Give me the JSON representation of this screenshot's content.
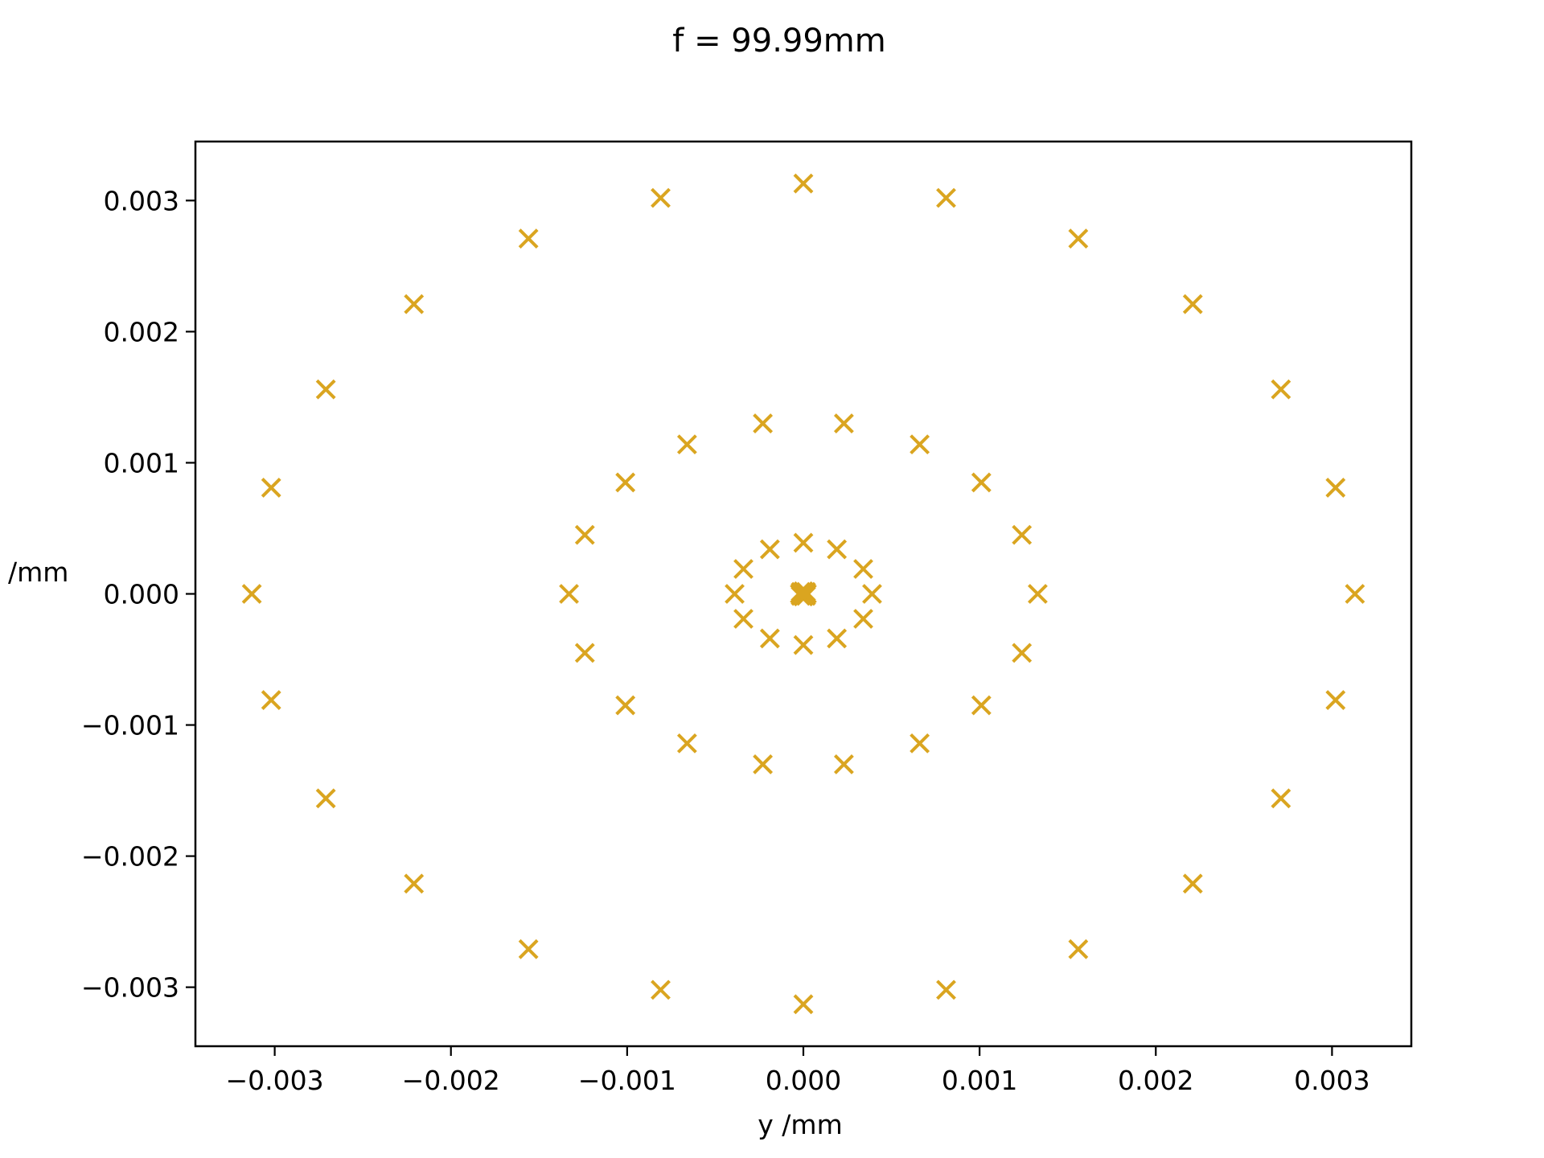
{
  "chart_data": {
    "type": "scatter",
    "title": "f = 99.99mm",
    "xlabel": "y /mm",
    "ylabel": "/mm",
    "xlim": [
      -0.00345,
      0.00345
    ],
    "ylim": [
      -0.00345,
      0.00345
    ],
    "xticks": [
      -0.003,
      -0.002,
      -0.001,
      0.0,
      0.001,
      0.002,
      0.003
    ],
    "xtick_labels": [
      "−0.003",
      "−0.002",
      "−0.001",
      "0.000",
      "0.001",
      "0.002",
      "0.003"
    ],
    "yticks": [
      -0.003,
      -0.002,
      -0.001,
      0.0,
      0.001,
      0.002,
      0.003
    ],
    "ytick_labels": [
      "−0.003",
      "−0.002",
      "−0.001",
      "0.000",
      "0.001",
      "0.002",
      "0.003"
    ],
    "grid": false,
    "marker": "x",
    "color": "#DAA520",
    "series": [
      {
        "points": [
          [
            0,
            0
          ],
          [
            2e-05,
            0
          ],
          [
            -2e-05,
            0
          ],
          [
            0,
            2e-05
          ],
          [
            0,
            -2e-05
          ],
          [
            1.5e-05,
            1.5e-05
          ],
          [
            -1.5e-05,
            1.5e-05
          ],
          [
            1.5e-05,
            -1.5e-05
          ],
          [
            -1.5e-05,
            -1.5e-05
          ],
          [
            0.00039,
            0
          ],
          [
            0.00034,
            0.00019
          ],
          [
            0.00019,
            0.00034
          ],
          [
            0,
            0.00039
          ],
          [
            -0.00019,
            0.00034
          ],
          [
            -0.00034,
            0.00019
          ],
          [
            -0.00039,
            0
          ],
          [
            -0.00034,
            -0.00019
          ],
          [
            -0.00019,
            -0.00034
          ],
          [
            0,
            -0.00039
          ],
          [
            0.00019,
            -0.00034
          ],
          [
            0.00034,
            -0.00019
          ],
          [
            0.00133,
            0
          ],
          [
            0.00124,
            0.00045
          ],
          [
            0.00101,
            0.00085
          ],
          [
            0.00066,
            0.00114
          ],
          [
            0.00023,
            0.0013
          ],
          [
            -0.00023,
            0.0013
          ],
          [
            -0.00066,
            0.00114
          ],
          [
            -0.00101,
            0.00085
          ],
          [
            -0.00124,
            0.00045
          ],
          [
            -0.00133,
            0
          ],
          [
            -0.00124,
            -0.00045
          ],
          [
            -0.00101,
            -0.00085
          ],
          [
            -0.00066,
            -0.00114
          ],
          [
            -0.00023,
            -0.0013
          ],
          [
            0.00023,
            -0.0013
          ],
          [
            0.00066,
            -0.00114
          ],
          [
            0.00101,
            -0.00085
          ],
          [
            0.00124,
            -0.00045
          ],
          [
            0.00313,
            0
          ],
          [
            0.00302,
            0.00081
          ],
          [
            0.00271,
            0.00156
          ],
          [
            0.00221,
            0.00221
          ],
          [
            0.00156,
            0.00271
          ],
          [
            0.00081,
            0.00302
          ],
          [
            0,
            0.00313
          ],
          [
            -0.00081,
            0.00302
          ],
          [
            -0.00156,
            0.00271
          ],
          [
            -0.00221,
            0.00221
          ],
          [
            -0.00271,
            0.00156
          ],
          [
            -0.00302,
            0.00081
          ],
          [
            -0.00313,
            0
          ],
          [
            -0.00302,
            -0.00081
          ],
          [
            -0.00271,
            -0.00156
          ],
          [
            -0.00221,
            -0.00221
          ],
          [
            -0.00156,
            -0.00271
          ],
          [
            -0.00081,
            -0.00302
          ],
          [
            0,
            -0.00313
          ],
          [
            0.00081,
            -0.00302
          ],
          [
            0.00156,
            -0.00271
          ],
          [
            0.00221,
            -0.00221
          ],
          [
            0.00271,
            -0.00156
          ],
          [
            0.00302,
            -0.00081
          ]
        ]
      }
    ]
  }
}
